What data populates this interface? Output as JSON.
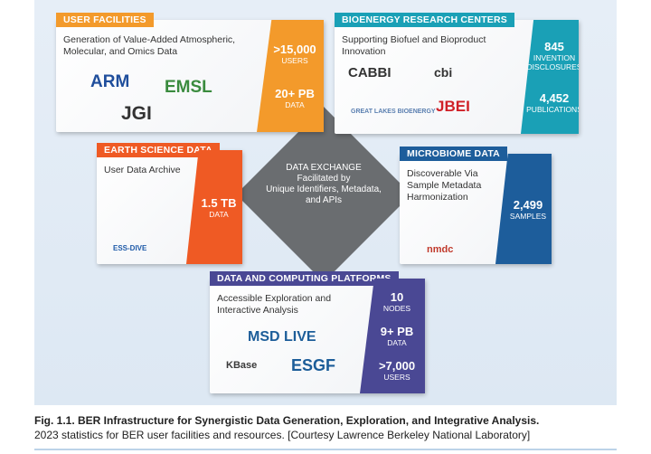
{
  "center": {
    "title": "DATA EXCHANGE",
    "lines": [
      "Facilitated by",
      "Unique Identifiers, Metadata,",
      "and APIs"
    ]
  },
  "panels": [
    {
      "label": "USER FACILITIES",
      "description": "Generation of Value-Added Atmospheric, Molecular, and Omics Data",
      "logos": [
        "ARM",
        "EMSL",
        "JGI"
      ],
      "stats": [
        {
          "value": ">15,000",
          "unit": "USERS"
        },
        {
          "value": "20+ PB",
          "unit": "DATA"
        }
      ]
    },
    {
      "label": "BIOENERGY RESEARCH CENTERS",
      "description": "Supporting Biofuel and Bioproduct Innovation",
      "logos": [
        "CABBI",
        "cbi",
        "GREAT LAKES BIOENERGY",
        "JBEI"
      ],
      "stats": [
        {
          "value": "845",
          "unit": "INVENTION DISCLOSURES"
        },
        {
          "value": "4,452",
          "unit": "PUBLICATIONS"
        }
      ]
    },
    {
      "label": "EARTH SCIENCE DATA",
      "description": "User Data Archive",
      "logos": [
        "ESS-DIVE"
      ],
      "stats": [
        {
          "value": "1.5 TB",
          "unit": "DATA"
        }
      ]
    },
    {
      "label": "MICROBIOME DATA",
      "description": "Discoverable Via Sample Metadata Harmonization",
      "logos": [
        "nmdc"
      ],
      "stats": [
        {
          "value": "2,499",
          "unit": "SAMPLES"
        }
      ]
    },
    {
      "label": "DATA AND COMPUTING PLATFORMS",
      "description": "Accessible Exploration and Interactive Analysis",
      "logos": [
        "MSD LIVE",
        "KBase",
        "ESGF"
      ],
      "stats": [
        {
          "value": "10",
          "unit": "NODES"
        },
        {
          "value": "9+ PB",
          "unit": "DATA"
        },
        {
          "value": ">7,000",
          "unit": "USERS"
        }
      ]
    }
  ],
  "caption": {
    "title": "Fig. 1.1. BER Infrastructure for Synergistic Data Generation, Exploration, and Integrative Analysis.",
    "text": "2023 statistics for BER user facilities and resources. [Courtesy Lawrence Berkeley National Laboratory]"
  }
}
